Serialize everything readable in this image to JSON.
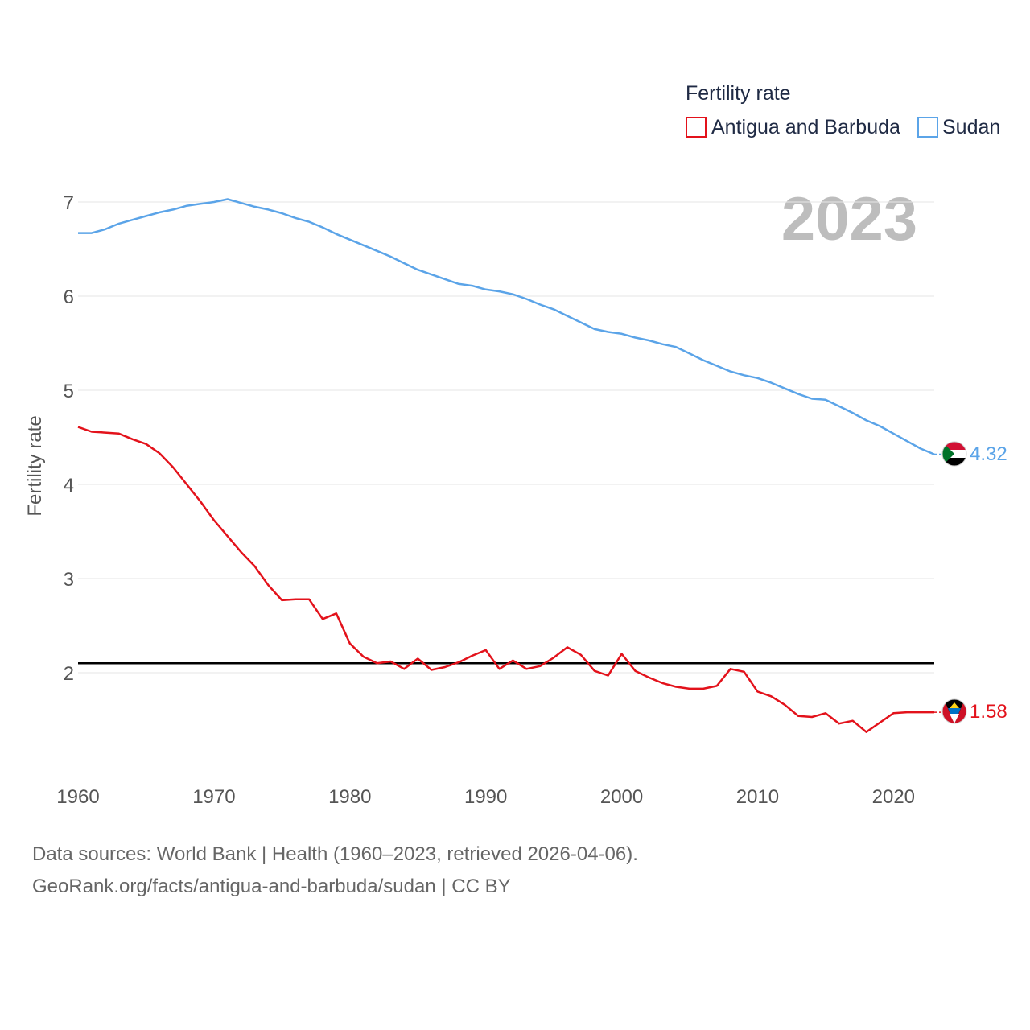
{
  "chart_data": {
    "type": "line",
    "title": "",
    "legend_title": "Fertility rate",
    "current_year": "2023",
    "xlabel": "",
    "ylabel": "Fertility rate",
    "xlim": [
      1960,
      2023
    ],
    "ylim": [
      1.0,
      7.3
    ],
    "x_ticks": [
      1960,
      1970,
      1980,
      1990,
      2000,
      2010,
      2020
    ],
    "y_ticks": [
      2,
      3,
      4,
      5,
      6,
      7
    ],
    "reference_line": {
      "value": 2.1,
      "color": "#000000"
    },
    "x": [
      1960,
      1961,
      1962,
      1963,
      1964,
      1965,
      1966,
      1967,
      1968,
      1969,
      1970,
      1971,
      1972,
      1973,
      1974,
      1975,
      1976,
      1977,
      1978,
      1979,
      1980,
      1981,
      1982,
      1983,
      1984,
      1985,
      1986,
      1987,
      1988,
      1989,
      1990,
      1991,
      1992,
      1993,
      1994,
      1995,
      1996,
      1997,
      1998,
      1999,
      2000,
      2001,
      2002,
      2003,
      2004,
      2005,
      2006,
      2007,
      2008,
      2009,
      2010,
      2011,
      2012,
      2013,
      2014,
      2015,
      2016,
      2017,
      2018,
      2019,
      2020,
      2021,
      2022,
      2023
    ],
    "series": [
      {
        "name": "Antigua and Barbuda",
        "color": "#e3121b",
        "end_label": "1.58",
        "values": [
          4.61,
          4.56,
          4.55,
          4.54,
          4.48,
          4.43,
          4.33,
          4.18,
          4.0,
          3.82,
          3.62,
          3.45,
          3.28,
          3.13,
          2.93,
          2.77,
          2.78,
          2.78,
          2.57,
          2.63,
          2.31,
          2.17,
          2.1,
          2.12,
          2.04,
          2.15,
          2.03,
          2.06,
          2.11,
          2.18,
          2.24,
          2.04,
          2.13,
          2.04,
          2.07,
          2.16,
          2.27,
          2.19,
          2.02,
          1.97,
          2.2,
          2.02,
          1.95,
          1.89,
          1.85,
          1.83,
          1.83,
          1.86,
          2.04,
          2.01,
          1.8,
          1.75,
          1.66,
          1.54,
          1.53,
          1.57,
          1.46,
          1.49,
          1.37,
          1.47,
          1.57,
          1.58,
          1.58,
          1.58
        ]
      },
      {
        "name": "Sudan",
        "color": "#5ba4e8",
        "end_label": "4.32",
        "values": [
          6.67,
          6.67,
          6.71,
          6.77,
          6.81,
          6.85,
          6.89,
          6.92,
          6.96,
          6.98,
          7.0,
          7.03,
          6.99,
          6.95,
          6.92,
          6.88,
          6.83,
          6.79,
          6.73,
          6.66,
          6.6,
          6.54,
          6.48,
          6.42,
          6.35,
          6.28,
          6.23,
          6.18,
          6.13,
          6.11,
          6.07,
          6.05,
          6.02,
          5.97,
          5.91,
          5.86,
          5.79,
          5.72,
          5.65,
          5.62,
          5.6,
          5.56,
          5.53,
          5.49,
          5.46,
          5.39,
          5.32,
          5.26,
          5.2,
          5.16,
          5.13,
          5.08,
          5.02,
          4.96,
          4.91,
          4.9,
          4.83,
          4.76,
          4.68,
          4.62,
          4.54,
          4.46,
          4.38,
          4.32
        ]
      }
    ]
  },
  "footer": {
    "line1": "Data sources: World Bank | Health (1960–2023, retrieved 2026-04-06).",
    "line2": "GeoRank.org/facts/antigua-and-barbuda/sudan | CC BY"
  }
}
